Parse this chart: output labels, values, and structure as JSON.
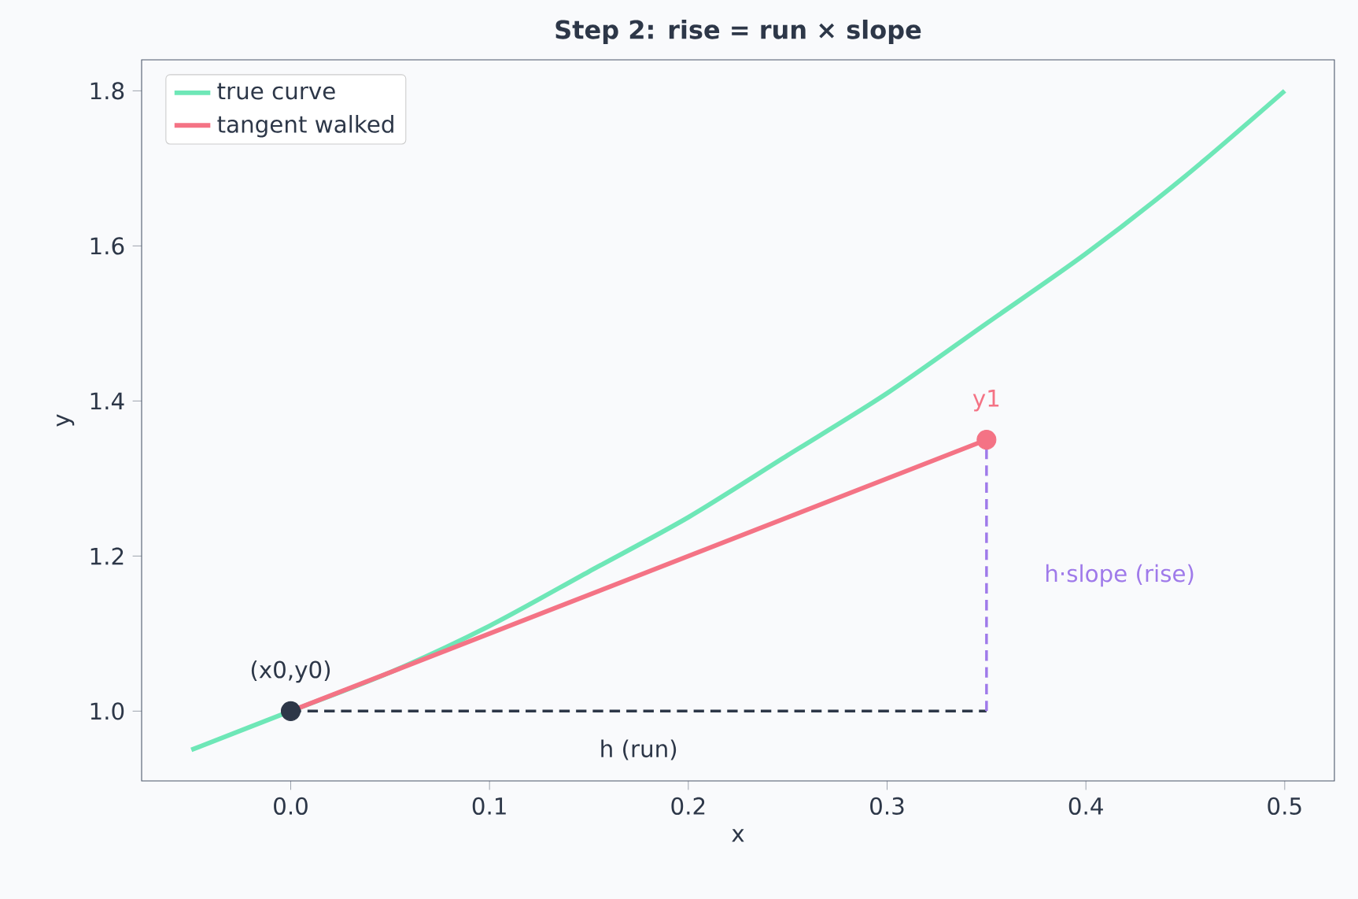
{
  "chart_data": {
    "type": "line",
    "title": "Step 2: rise = run × slope",
    "xlabel": "x",
    "ylabel": "y",
    "xlim": [
      -0.075,
      0.525
    ],
    "ylim": [
      0.91,
      1.84
    ],
    "xticks": [
      {
        "value": 0,
        "label": "0.0"
      },
      {
        "value": 0.1,
        "label": "0.1"
      },
      {
        "value": 0.2,
        "label": "0.2"
      },
      {
        "value": 0.3,
        "label": "0.3"
      },
      {
        "value": 0.4,
        "label": "0.4"
      },
      {
        "value": 0.5,
        "label": "0.5"
      }
    ],
    "yticks": [
      {
        "value": 1,
        "label": "1.0"
      },
      {
        "value": 1.2,
        "label": "1.2"
      },
      {
        "value": 1.4,
        "label": "1.4"
      },
      {
        "value": 1.6,
        "label": "1.6"
      },
      {
        "value": 1.8,
        "label": "1.8"
      }
    ],
    "legend": "top left",
    "grid": false,
    "series": [
      {
        "name": "true curve",
        "color": "#6ee7b7",
        "x": [
          -0.05,
          0,
          0.05,
          0.1,
          0.15,
          0.2,
          0.25,
          0.3,
          0.35,
          0.4,
          0.45,
          0.5
        ],
        "values": [
          0.95,
          1.0,
          1.05,
          1.11,
          1.18,
          1.25,
          1.33,
          1.41,
          1.5,
          1.59,
          1.69,
          1.8
        ]
      },
      {
        "name": "tangent walked",
        "color": "#f47385",
        "x": [
          0,
          0.35
        ],
        "values": [
          1.0,
          1.35
        ]
      },
      {
        "color": "#2d3748",
        "line_style": "dashed",
        "x": [
          0,
          0.35
        ],
        "values": [
          1.0,
          1.0
        ]
      },
      {
        "color": "#9f7aea",
        "line_style": "dashed",
        "x": [
          0.35,
          0.35
        ],
        "values": [
          1.0,
          1.35
        ]
      },
      {
        "type": "scatter",
        "marker": "circle",
        "color": "#2d3748",
        "x": [
          0
        ],
        "values": [
          1.0
        ]
      },
      {
        "type": "scatter",
        "marker": "circle",
        "color": "#f47385",
        "x": [
          0.35
        ],
        "values": [
          1.35
        ]
      }
    ],
    "annotations": [
      {
        "text": "(x0,y0)",
        "x": 0,
        "y": 1.0
      },
      {
        "text": "y1",
        "x": 0.35,
        "y": 1.35
      },
      {
        "text": "h·slope (rise)",
        "x": 0.35,
        "y": 1.175
      },
      {
        "text": "h (run)",
        "x": 0.175,
        "y": 1.0
      }
    ]
  }
}
